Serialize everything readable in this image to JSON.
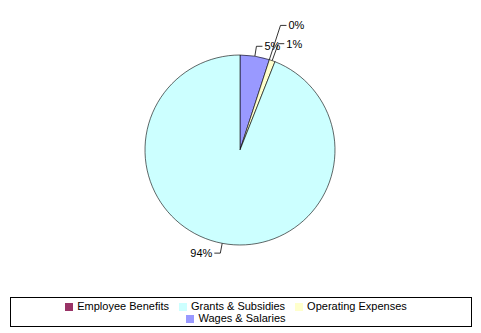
{
  "chart_data": {
    "type": "pie",
    "categories": [
      "Wages & Salaries",
      "Employee Benefits",
      "Operating Expenses",
      "Grants & Subsidies"
    ],
    "values": [
      5,
      0,
      1,
      94
    ],
    "value_labels": [
      "5%",
      "0%",
      "1%",
      "94%"
    ],
    "colors": [
      "#9999ff",
      "#993366",
      "#ffffcc",
      "#ccffff"
    ],
    "legend": "bottom"
  }
}
